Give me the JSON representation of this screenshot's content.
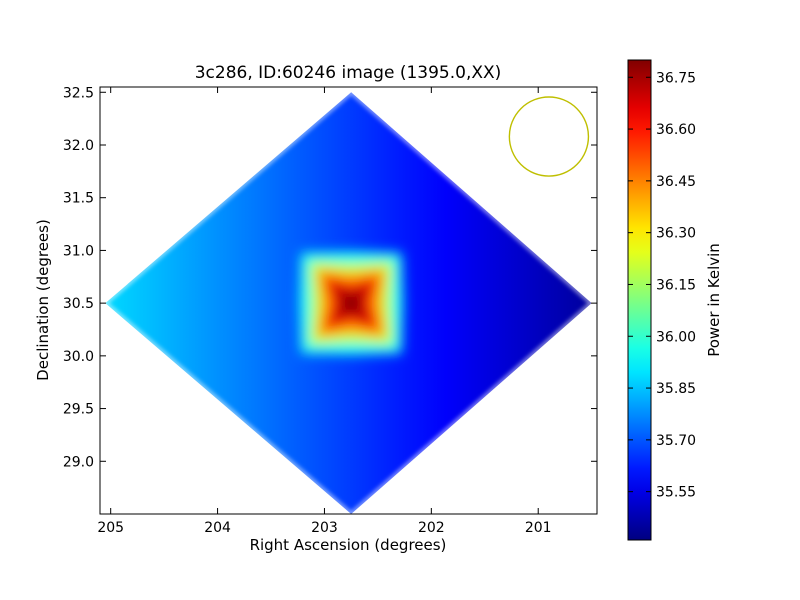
{
  "chart_data": {
    "type": "heatmap",
    "title": "3c286, ID:60246 image (1395.0,XX)",
    "xlabel": "Right Ascension (degrees)",
    "ylabel": "Declination (degrees)",
    "colorbar_label": "Power in Kelvin",
    "xlim": [
      205.1,
      200.45
    ],
    "ylim": [
      28.5,
      32.55
    ],
    "x_ticks": [
      205,
      204,
      203,
      202,
      201
    ],
    "x_tick_labels": [
      "205",
      "204",
      "203",
      "202",
      "201"
    ],
    "y_ticks": [
      29.0,
      29.5,
      30.0,
      30.5,
      31.0,
      31.5,
      32.0,
      32.5
    ],
    "y_tick_labels": [
      "29.0",
      "29.5",
      "30.0",
      "30.5",
      "31.0",
      "31.5",
      "32.0",
      "32.5"
    ],
    "colorbar_range": [
      35.41,
      36.8
    ],
    "colorbar_ticks": [
      35.55,
      35.7,
      35.85,
      36.0,
      36.15,
      36.3,
      36.45,
      36.6,
      36.75
    ],
    "colorbar_tick_labels": [
      "35.55",
      "35.70",
      "35.85",
      "36.00",
      "36.15",
      "36.30",
      "36.45",
      "36.60",
      "36.75"
    ],
    "colormap": "jet",
    "map_footprint_corners": [
      [
        202.75,
        32.5
      ],
      [
        205.05,
        30.5
      ],
      [
        202.75,
        28.5
      ],
      [
        200.5,
        30.5
      ]
    ],
    "source_peak": {
      "ra": 202.75,
      "dec": 30.5,
      "value": 36.78
    },
    "background_gradient": {
      "east_edge_value": 35.88,
      "west_edge_value": 35.45
    },
    "beam_circle": {
      "ra": 200.9,
      "dec": 32.08,
      "radius_deg": 0.37,
      "color": "#bfbf00"
    },
    "grid": false
  }
}
